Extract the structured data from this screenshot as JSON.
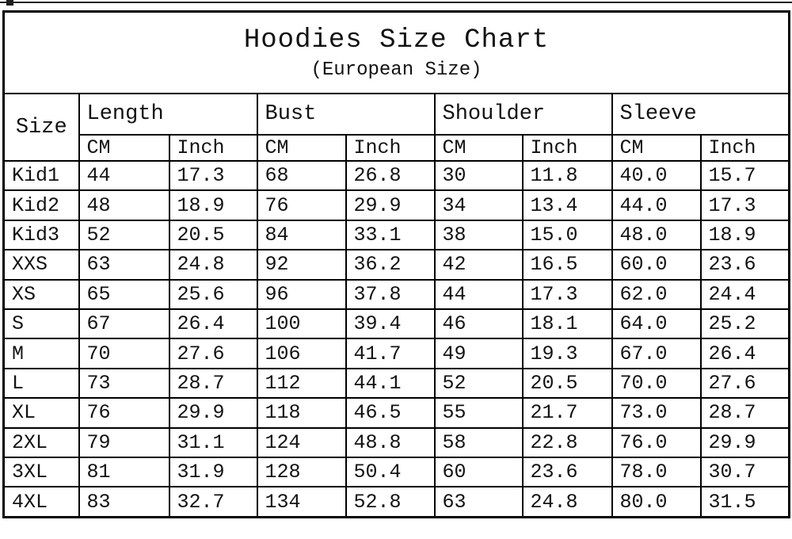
{
  "title": "Hoodies Size Chart",
  "subtitle": "(European Size)",
  "table": {
    "corner_header": "Size",
    "group_headers": [
      "Length",
      "Bust",
      "Shoulder",
      "Sleeve"
    ],
    "unit_headers": [
      "CM",
      "Inch",
      "CM",
      "Inch",
      "CM",
      "Inch",
      "CM",
      "Inch"
    ],
    "rows": [
      {
        "size": "Kid1",
        "values": [
          "44",
          "17.3",
          "68",
          "26.8",
          "30",
          "11.8",
          "40.0",
          "15.7"
        ]
      },
      {
        "size": "Kid2",
        "values": [
          "48",
          "18.9",
          "76",
          "29.9",
          "34",
          "13.4",
          "44.0",
          "17.3"
        ]
      },
      {
        "size": "Kid3",
        "values": [
          "52",
          "20.5",
          "84",
          "33.1",
          "38",
          "15.0",
          "48.0",
          "18.9"
        ]
      },
      {
        "size": "XXS",
        "values": [
          "63",
          "24.8",
          "92",
          "36.2",
          "42",
          "16.5",
          "60.0",
          "23.6"
        ]
      },
      {
        "size": "XS",
        "values": [
          "65",
          "25.6",
          "96",
          "37.8",
          "44",
          "17.3",
          "62.0",
          "24.4"
        ]
      },
      {
        "size": "S",
        "values": [
          "67",
          "26.4",
          "100",
          "39.4",
          "46",
          "18.1",
          "64.0",
          "25.2"
        ]
      },
      {
        "size": "M",
        "values": [
          "70",
          "27.6",
          "106",
          "41.7",
          "49",
          "19.3",
          "67.0",
          "26.4"
        ]
      },
      {
        "size": "L",
        "values": [
          "73",
          "28.7",
          "112",
          "44.1",
          "52",
          "20.5",
          "70.0",
          "27.6"
        ]
      },
      {
        "size": "XL",
        "values": [
          "76",
          "29.9",
          "118",
          "46.5",
          "55",
          "21.7",
          "73.0",
          "28.7"
        ]
      },
      {
        "size": "2XL",
        "values": [
          "79",
          "31.1",
          "124",
          "48.8",
          "58",
          "22.8",
          "76.0",
          "29.9"
        ]
      },
      {
        "size": "3XL",
        "values": [
          "81",
          "31.9",
          "128",
          "50.4",
          "60",
          "23.6",
          "78.0",
          "30.7"
        ]
      },
      {
        "size": "4XL",
        "values": [
          "83",
          "32.7",
          "134",
          "52.8",
          "63",
          "24.8",
          "80.0",
          "31.5"
        ]
      }
    ]
  },
  "colors": {
    "background": "#ffffff",
    "border": "#000000",
    "text": "#121212"
  }
}
